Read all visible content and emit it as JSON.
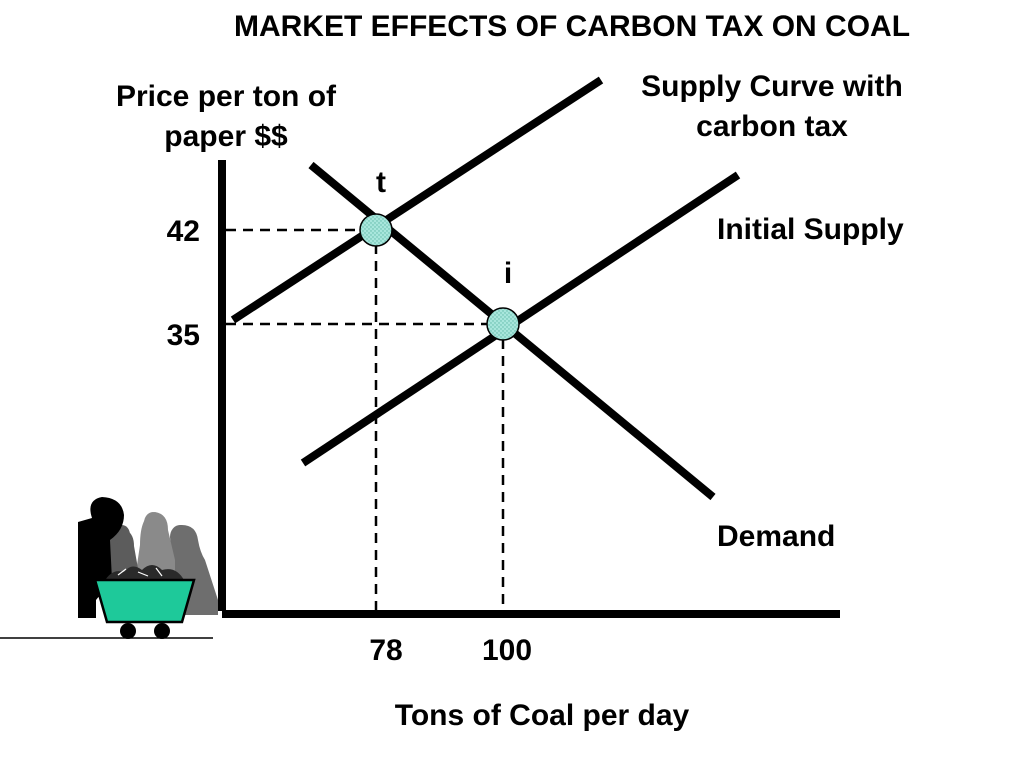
{
  "title": "MARKET EFFECTS OF CARBON TAX ON COAL",
  "axes": {
    "y_label": "Price per ton of paper $$",
    "x_label": "Tons of Coal per day"
  },
  "curves": {
    "supply_with_tax": "Supply Curve  with carbon tax",
    "initial_supply": "Initial Supply",
    "demand": "Demand"
  },
  "equilibria": [
    {
      "label": "t",
      "quantity": 78,
      "price": 42
    },
    {
      "label": "i",
      "quantity": 100,
      "price": 35
    }
  ],
  "ticks": {
    "price": [
      "42",
      "35"
    ],
    "quantity": [
      "78",
      "100"
    ]
  },
  "colors": {
    "point_fill": "#a8e6dc",
    "cart_fill": "#1ec99a",
    "line": "#000000"
  },
  "illustration": "workers-with-coal-cart-icon"
}
